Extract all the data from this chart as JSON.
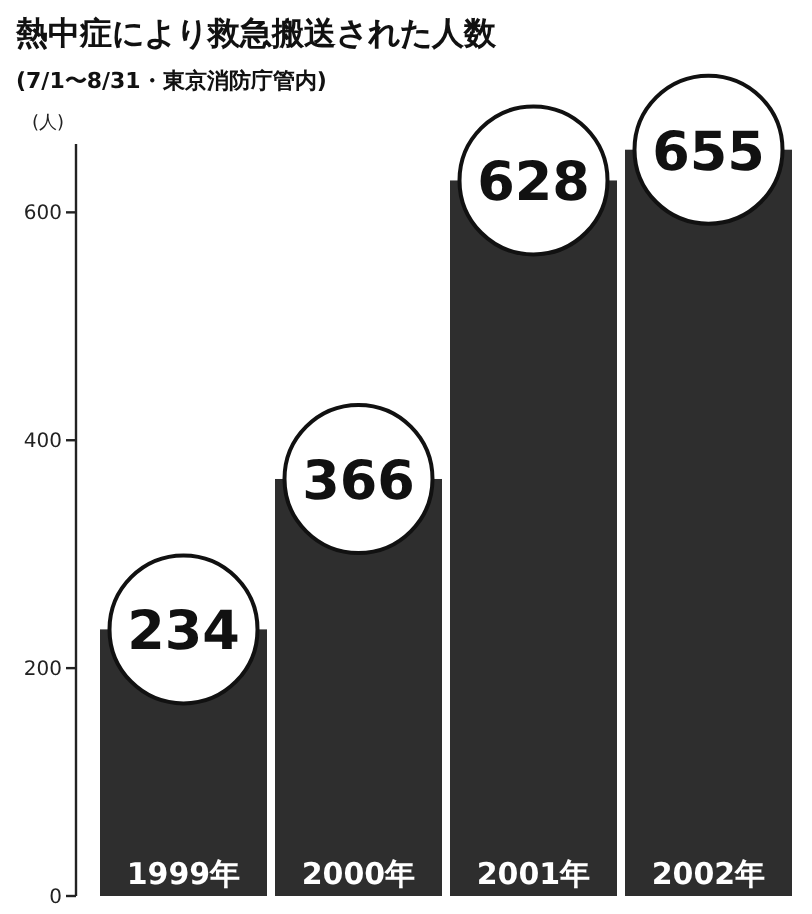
{
  "chart_data": {
    "type": "bar",
    "title": "熱中症により救急搬送された人数",
    "subtitle": "(7/1〜8/31・東京消防庁管内)",
    "ylabel": "(人)",
    "categories": [
      "1999年",
      "2000年",
      "2001年",
      "2002年"
    ],
    "values": [
      234,
      366,
      628,
      655
    ],
    "color": "#2e2e2e",
    "ylim": [
      0,
      660
    ],
    "yticks": [
      0,
      200,
      400,
      600
    ],
    "data_labels": true
  }
}
